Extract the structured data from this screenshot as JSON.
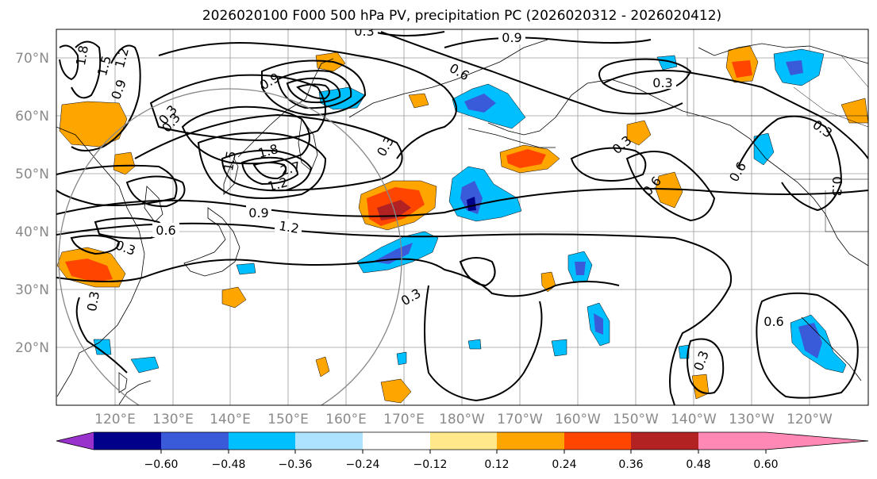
{
  "title": "2026020100 F000 500 hPa PV, precipitation PC (2026020312 - 2026020412)",
  "lat_labels": [
    "70°N",
    "60°N",
    "50°N",
    "40°N",
    "30°N",
    "20°N"
  ],
  "lon_labels": [
    "120°E",
    "130°E",
    "140°E",
    "150°E",
    "160°E",
    "170°E",
    "180°W",
    "170°W",
    "160°W",
    "150°W",
    "140°W",
    "130°W",
    "120°W"
  ],
  "colorbar": {
    "ticks": [
      "−0.60",
      "−0.48",
      "−0.36",
      "−0.24",
      "−0.12",
      "0.12",
      "0.24",
      "0.36",
      "0.48",
      "0.60"
    ],
    "colors": [
      "#9932cc",
      "#00008b",
      "#3a5bd9",
      "#00bfff",
      "#aee3ff",
      "#ffffff",
      "#ffe88a",
      "#ffa500",
      "#ff4500",
      "#b22222",
      "#ff88b4"
    ]
  },
  "contour_labels": [
    "0.3",
    "0.9",
    "0.6",
    "0.3",
    "1.8",
    "1.5",
    "1.2",
    "0.9",
    "0.3",
    "1.5",
    "1.8",
    "2.7",
    "1.2",
    "0.9",
    "1.2",
    "0.6",
    "0.3",
    "0.3",
    "0.9",
    "0.3",
    "0.3",
    "0.3",
    "0.6",
    "0.6",
    "0.3",
    "0.3",
    "0.6",
    "0.3",
    "0.3"
  ]
}
